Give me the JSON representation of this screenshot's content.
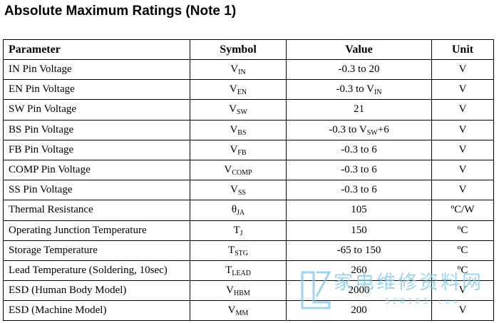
{
  "title": "Absolute Maximum Ratings (Note 1)",
  "headers": {
    "parameter": "Parameter",
    "symbol": "Symbol",
    "value": "Value",
    "unit": "Unit"
  },
  "rows": [
    {
      "parameter": "IN Pin Voltage",
      "sym_main": "V",
      "sym_sub": "IN",
      "value": "-0.3 to 20",
      "value_main": "",
      "value_sub": "",
      "value_tail": "",
      "unit": "V"
    },
    {
      "parameter": "EN Pin Voltage",
      "sym_main": "V",
      "sym_sub": "EN",
      "value": "",
      "value_main": "-0.3 to V",
      "value_sub": "IN",
      "value_tail": "",
      "unit": "V"
    },
    {
      "parameter": "SW Pin Voltage",
      "sym_main": "V",
      "sym_sub": "SW",
      "value": "21",
      "value_main": "",
      "value_sub": "",
      "value_tail": "",
      "unit": "V"
    },
    {
      "parameter": "BS Pin Voltage",
      "sym_main": "V",
      "sym_sub": "BS",
      "value": "",
      "value_main": "-0.3 to V",
      "value_sub": "SW",
      "value_tail": "+6",
      "unit": "V"
    },
    {
      "parameter": "FB Pin Voltage",
      "sym_main": "V",
      "sym_sub": "FB",
      "value": "-0.3 to 6",
      "value_main": "",
      "value_sub": "",
      "value_tail": "",
      "unit": "V"
    },
    {
      "parameter": "COMP Pin Voltage",
      "sym_main": "V",
      "sym_sub": "COMP",
      "value": "-0.3 to 6",
      "value_main": "",
      "value_sub": "",
      "value_tail": "",
      "unit": "V"
    },
    {
      "parameter": "SS Pin Voltage",
      "sym_main": "V",
      "sym_sub": "SS",
      "value": "-0.3 to 6",
      "value_main": "",
      "value_sub": "",
      "value_tail": "",
      "unit": "V"
    },
    {
      "parameter": "Thermal Resistance",
      "sym_main": "θ",
      "sym_sub": "JA",
      "value": "105",
      "value_main": "",
      "value_sub": "",
      "value_tail": "",
      "unit": "ºC/W"
    },
    {
      "parameter": "Operating Junction Temperature",
      "sym_main": "T",
      "sym_sub": "J",
      "value": "150",
      "value_main": "",
      "value_sub": "",
      "value_tail": "",
      "unit": "ºC"
    },
    {
      "parameter": "Storage Temperature",
      "sym_main": "T",
      "sym_sub": "STG",
      "value": "-65 to 150",
      "value_main": "",
      "value_sub": "",
      "value_tail": "",
      "unit": "ºC"
    },
    {
      "parameter": "Lead Temperature (Soldering, 10sec)",
      "sym_main": "T",
      "sym_sub": "LEAD",
      "value": "260",
      "value_main": "",
      "value_sub": "",
      "value_tail": "",
      "unit": "ºC"
    },
    {
      "parameter": "ESD (Human Body Model)",
      "sym_main": "V",
      "sym_sub": "HBM",
      "value": "2000",
      "value_main": "",
      "value_sub": "",
      "value_tail": "",
      "unit": "V"
    },
    {
      "parameter": "ESD (Machine Model)",
      "sym_main": "V",
      "sym_sub": "MM",
      "value": "200",
      "value_main": "",
      "value_sub": "",
      "value_tail": "",
      "unit": "V"
    }
  ],
  "watermark": {
    "text": "家电维修资料网",
    "url": "520101.com"
  }
}
